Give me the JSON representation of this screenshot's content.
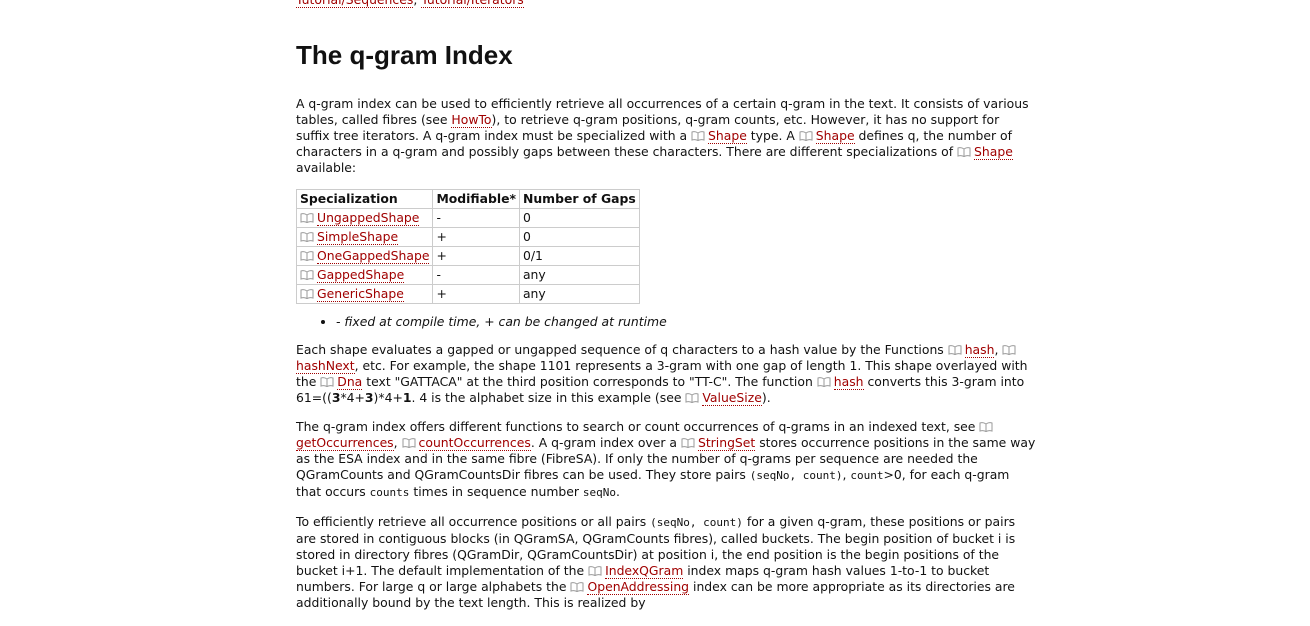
{
  "top_links": [
    {
      "link": "Tutorial/Sequences"
    },
    {
      "text": ", "
    },
    {
      "link": "Tutorial/Iterators"
    }
  ],
  "heading": "The q-gram Index",
  "paragraphs": [
    [
      {
        "text": "A q-gram index can be used to efficiently retrieve all occurrences of a certain q-gram in the text. It consists of various tables, called fibres (see "
      },
      {
        "link": "HowTo"
      },
      {
        "text": "), to retrieve q-gram positions, q-gram counts, etc. However, it has no support for suffix tree iterators. A q-gram index must be specialized with a "
      },
      {
        "ref": "Shape"
      },
      {
        "text": " type. A "
      },
      {
        "ref": "Shape"
      },
      {
        "text": " defines q, the number of characters in a q-gram and possibly gaps between these characters. There are different specializations of "
      },
      {
        "ref": "Shape"
      },
      {
        "text": " available:"
      }
    ],
    [
      {
        "text": "Each shape evaluates a gapped or ungapped sequence of q characters to a hash value by the Functions "
      },
      {
        "ref": "hash"
      },
      {
        "text": ", "
      },
      {
        "ref": "hashNext"
      },
      {
        "text": ", etc. For example, the shape 1101 represents a 3-gram with one gap of length 1. This shape overlayed with the "
      },
      {
        "ref": "Dna"
      },
      {
        "text": " text \"GATTACA\" at the third position corresponds to \"TT-C\". The function "
      },
      {
        "ref": "hash"
      },
      {
        "text": " converts this 3-gram into 61=(("
      },
      {
        "bold": "3"
      },
      {
        "text": "*4+"
      },
      {
        "bold": "3"
      },
      {
        "text": ")*4+"
      },
      {
        "bold": "1"
      },
      {
        "text": ". 4 is the alphabet size in this example (see "
      },
      {
        "ref": "ValueSize"
      },
      {
        "text": ")."
      }
    ],
    [
      {
        "text": "The q-gram index offers different functions to search or count occurrences of q-grams in an indexed text, see "
      },
      {
        "ref": "getOccurrences"
      },
      {
        "text": ", "
      },
      {
        "ref": "countOccurrences"
      },
      {
        "text": ". A q-gram index over a "
      },
      {
        "ref": "StringSet"
      },
      {
        "text": " stores occurrence positions in the same way as the ESA index and in the same fibre (FibreSA). If only the number of q-grams per sequence are needed the QGramCounts and QGramCountsDir fibres can be used. They store pairs "
      },
      {
        "code": "(seqNo, count)"
      },
      {
        "text": ", "
      },
      {
        "code": "count"
      },
      {
        "text": ">0, for each q-gram that occurs "
      },
      {
        "code": "counts"
      },
      {
        "text": " times in sequence number "
      },
      {
        "code": "seqNo"
      },
      {
        "text": "."
      }
    ],
    [
      {
        "text": "To efficiently retrieve all occurrence positions or all pairs "
      },
      {
        "code": "(seqNo, count)"
      },
      {
        "text": " for a given q-gram, these positions or pairs are stored in contiguous blocks (in QGramSA, QGramCounts fibres), called buckets. The begin position of bucket i is stored in directory fibres (QGramDir, QGramCountsDir) at position i, the end position is the begin positions of the bucket i+1. The default implementation of the "
      },
      {
        "ref": "IndexQGram"
      },
      {
        "text": " index maps q-gram hash values 1-to-1 to bucket numbers. For large q or large alphabets the "
      },
      {
        "ref": "OpenAddressing"
      },
      {
        "text": " index can be more appropriate as its directories are additionally bound by the text length. This is realized by"
      }
    ]
  ],
  "table": {
    "header": [
      "Specialization",
      "Modifiable*",
      "Number of Gaps"
    ],
    "rows": [
      [
        "UngappedShape",
        "-",
        "0"
      ],
      [
        "SimpleShape",
        "+",
        "0"
      ],
      [
        "OneGappedShape",
        "+",
        "0/1"
      ],
      [
        "GappedShape",
        "-",
        "any"
      ],
      [
        "GenericShape",
        "+",
        "any"
      ]
    ]
  },
  "note": "- fixed at compile time, + can be changed at runtime"
}
